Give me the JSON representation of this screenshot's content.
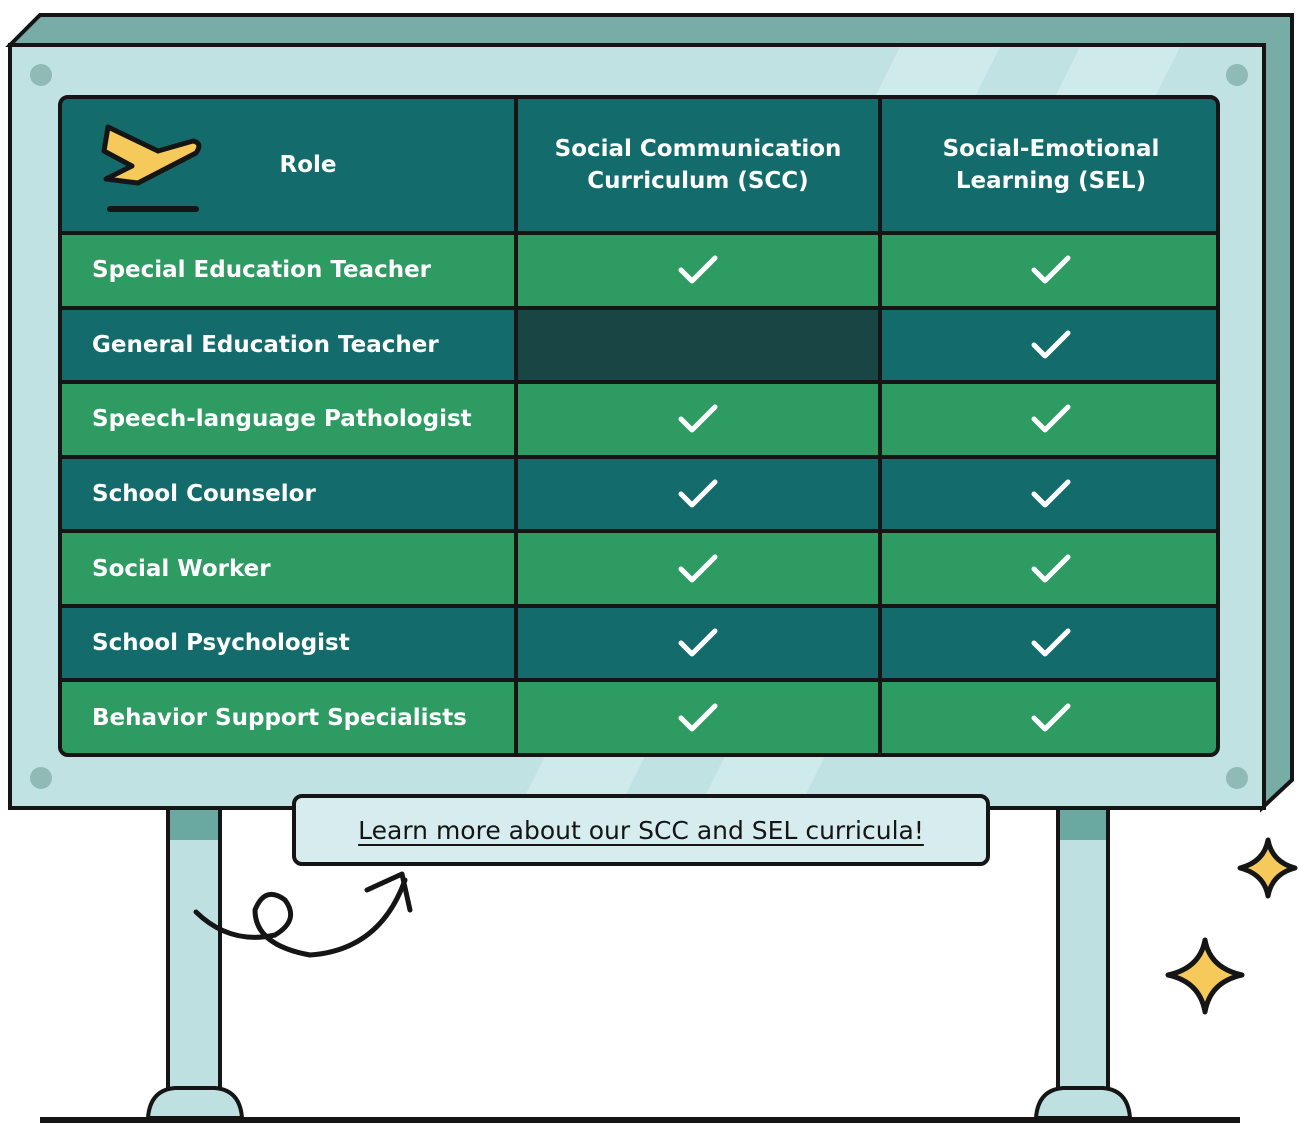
{
  "header": {
    "role": "Role",
    "columns": [
      "Social Communication Curriculum (SCC)",
      "Social-Emotional Learning (SEL)"
    ]
  },
  "rows": [
    {
      "role": "Special Education Teacher",
      "checks": [
        true,
        true
      ]
    },
    {
      "role": "General Education Teacher",
      "checks": [
        false,
        true
      ]
    },
    {
      "role": "Speech-language Pathologist",
      "checks": [
        true,
        true
      ]
    },
    {
      "role": "School Counselor",
      "checks": [
        true,
        true
      ]
    },
    {
      "role": "Social Worker",
      "checks": [
        true,
        true
      ]
    },
    {
      "role": "School Psychologist",
      "checks": [
        true,
        true
      ]
    },
    {
      "role": "Behavior Support Specialists",
      "checks": [
        true,
        true
      ]
    }
  ],
  "link": "Learn more about our SCC and SEL curricula!"
}
